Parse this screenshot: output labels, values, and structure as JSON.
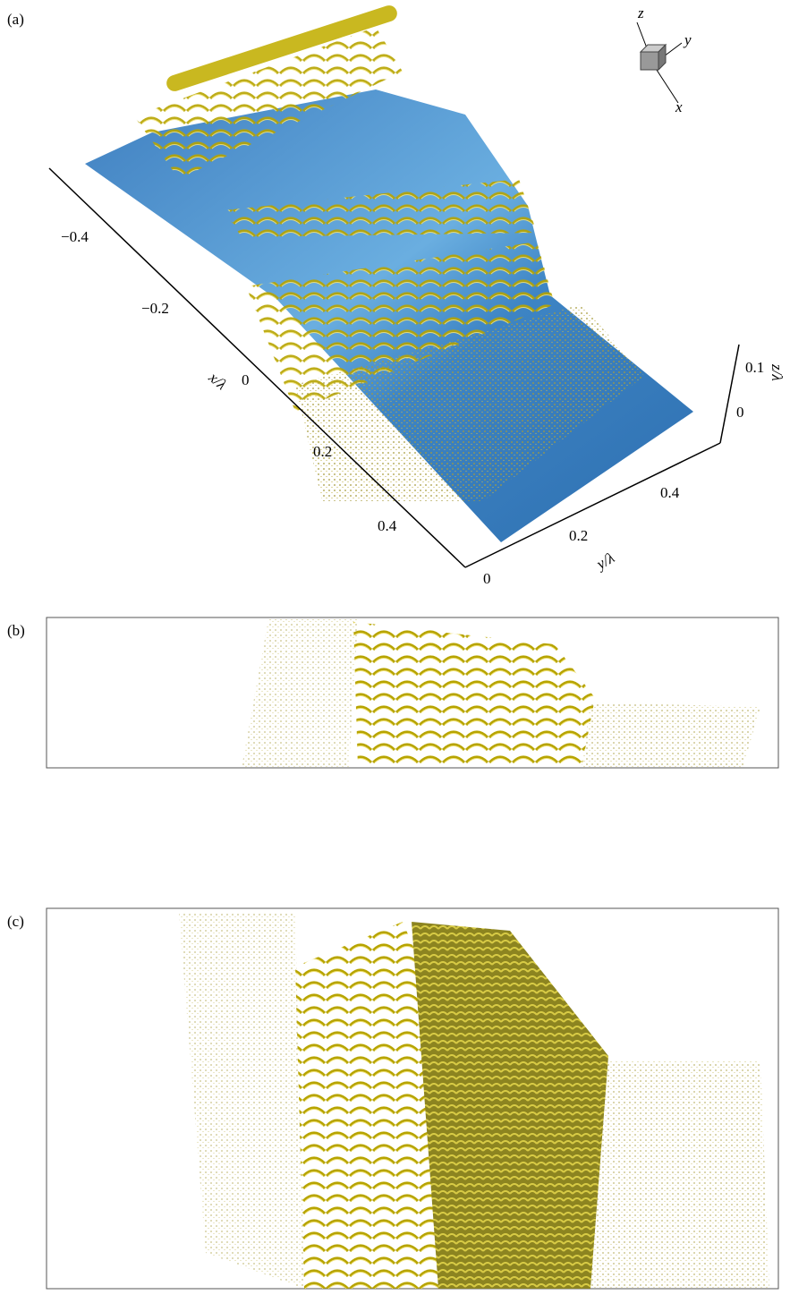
{
  "panel_a": {
    "label": "(a)",
    "triad": {
      "z": "z",
      "y": "y",
      "x": "x"
    },
    "x_axis": {
      "title": "x/λ",
      "ticks": [
        "−0.4",
        "−0.2",
        "0",
        "0.2",
        "0.4"
      ]
    },
    "y_axis": {
      "title": "y/λ",
      "ticks": [
        "0",
        "0.2",
        "0.4"
      ]
    },
    "z_axis": {
      "title": "z/λ",
      "ticks": [
        "0",
        "0.1"
      ]
    }
  },
  "panel_b": {
    "label": "(b)"
  },
  "panel_c": {
    "label": "(c)"
  }
}
